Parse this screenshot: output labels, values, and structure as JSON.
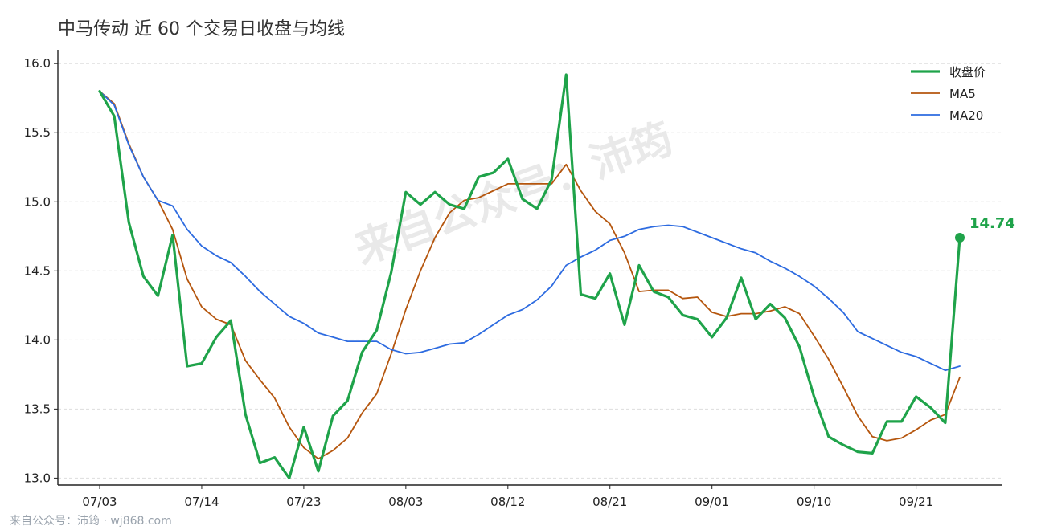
{
  "title": "中马传动 近 60 个交易日收盘与均线",
  "footer": "来自公众号：沛筠 · wj868.com",
  "watermark": "来自公众号：沛筠",
  "colors": {
    "close": "#1fa34a",
    "ma5": "#b5560e",
    "ma20": "#2d6be0",
    "grid": "#dddddd",
    "axis": "#222222",
    "watermark": "#e9e9e9"
  },
  "chart_data": {
    "type": "line",
    "title": "中马传动 近 60 个交易日收盘与均线",
    "ylim": [
      12.95,
      16.1
    ],
    "yticks": [
      "13.0",
      "13.5",
      "14.0",
      "14.5",
      "15.0",
      "15.5",
      "16.0"
    ],
    "x_tick_labels": [
      {
        "index": 0,
        "label": "07/03"
      },
      {
        "index": 7,
        "label": "07/14"
      },
      {
        "index": 14,
        "label": "07/23"
      },
      {
        "index": 21,
        "label": "08/03"
      },
      {
        "index": 28,
        "label": "08/12"
      },
      {
        "index": 35,
        "label": "08/21"
      },
      {
        "index": 42,
        "label": "09/01"
      },
      {
        "index": 49,
        "label": "09/10"
      },
      {
        "index": 56,
        "label": "09/21"
      }
    ],
    "grid": "horizontal dashed",
    "legend_position": "top-right",
    "series": [
      {
        "name": "收盘价",
        "key": "close",
        "values": [
          15.8,
          15.62,
          14.85,
          14.46,
          14.32,
          14.76,
          13.81,
          13.83,
          14.02,
          14.14,
          13.46,
          13.11,
          13.15,
          13.0,
          13.37,
          13.05,
          13.45,
          13.56,
          13.91,
          14.07,
          14.49,
          15.07,
          14.98,
          15.07,
          14.98,
          14.95,
          15.18,
          15.21,
          15.31,
          15.02,
          14.95,
          15.16,
          15.92,
          14.33,
          14.3,
          14.48,
          14.11,
          14.54,
          14.35,
          14.31,
          14.18,
          14.15,
          14.02,
          14.16,
          14.45,
          14.15,
          14.26,
          14.16,
          13.95,
          13.59,
          13.3,
          13.24,
          13.19,
          13.18,
          13.41,
          13.41,
          13.59,
          13.51,
          13.4,
          14.74
        ]
      },
      {
        "name": "MA5",
        "key": "ma5",
        "values": [
          15.8,
          15.71,
          15.42,
          15.18,
          15.01,
          14.8,
          14.44,
          14.24,
          14.15,
          14.11,
          13.85,
          13.71,
          13.58,
          13.37,
          13.22,
          13.14,
          13.2,
          13.29,
          13.47,
          13.61,
          13.9,
          14.22,
          14.5,
          14.74,
          14.92,
          15.01,
          15.03,
          15.08,
          15.13,
          15.13,
          15.13,
          15.13,
          15.27,
          15.08,
          14.93,
          14.84,
          14.63,
          14.35,
          14.36,
          14.36,
          14.3,
          14.31,
          14.2,
          14.17,
          14.19,
          14.19,
          14.21,
          14.24,
          14.19,
          14.03,
          13.86,
          13.66,
          13.45,
          13.3,
          13.27,
          13.29,
          13.35,
          13.42,
          13.46,
          13.73
        ]
      },
      {
        "name": "MA20",
        "key": "ma20",
        "values": [
          15.8,
          15.7,
          15.41,
          15.18,
          15.01,
          14.97,
          14.8,
          14.68,
          14.61,
          14.56,
          14.46,
          14.35,
          14.26,
          14.17,
          14.12,
          14.05,
          14.02,
          13.99,
          13.99,
          13.99,
          13.93,
          13.9,
          13.91,
          13.94,
          13.97,
          13.98,
          14.04,
          14.11,
          14.18,
          14.22,
          14.29,
          14.39,
          14.54,
          14.6,
          14.65,
          14.72,
          14.75,
          14.8,
          14.82,
          14.83,
          14.82,
          14.78,
          14.74,
          14.7,
          14.66,
          14.63,
          14.57,
          14.52,
          14.46,
          14.39,
          14.3,
          14.2,
          14.06,
          14.01,
          13.96,
          13.91,
          13.88,
          13.83,
          13.78,
          13.81
        ]
      }
    ],
    "annotation": {
      "series": "收盘价",
      "index": 59,
      "label": "14.74"
    }
  }
}
